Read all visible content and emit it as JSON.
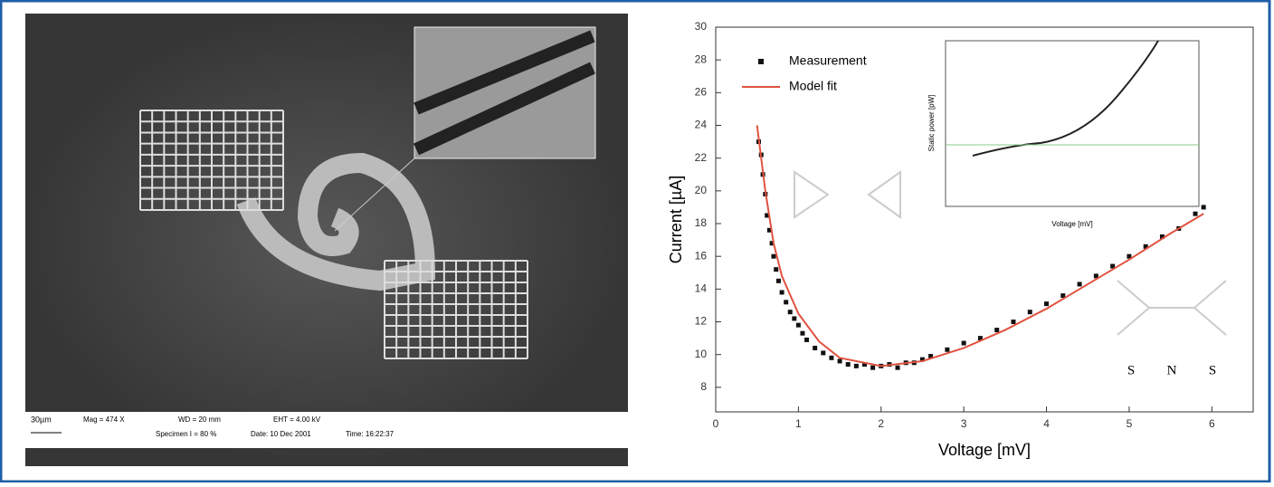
{
  "sem_image": {
    "scale_bar": "30µm",
    "info": [
      "Mag = 474 X",
      "WD = 20 mm",
      "EHT = 4.00 kV",
      "Specimen I = 80 %",
      "Date: 10 Dec 2001",
      "Time: 16:22:37"
    ]
  },
  "chart_data": {
    "type": "scatter",
    "xlabel": "Voltage [mV]",
    "ylabel": "Current [µA]",
    "xlim": [
      0,
      6.5
    ],
    "ylim": [
      6.5,
      30
    ],
    "xticks": [
      0,
      1,
      2,
      3,
      4,
      5,
      6
    ],
    "yticks": [
      8,
      10,
      12,
      14,
      16,
      18,
      20,
      22,
      24,
      26,
      28,
      30
    ],
    "legend": "upper left",
    "series": [
      {
        "name": "Measurement",
        "color": "#111111",
        "mode": "markers",
        "x": [
          0.52,
          0.55,
          0.57,
          0.6,
          0.62,
          0.65,
          0.68,
          0.7,
          0.73,
          0.76,
          0.8,
          0.85,
          0.9,
          0.95,
          1.0,
          1.05,
          1.1,
          1.2,
          1.3,
          1.4,
          1.5,
          1.6,
          1.7,
          1.8,
          1.9,
          2.0,
          2.1,
          2.2,
          2.3,
          2.4,
          2.5,
          2.6,
          2.8,
          3.0,
          3.2,
          3.4,
          3.6,
          3.8,
          4.0,
          4.2,
          4.4,
          4.6,
          4.8,
          5.0,
          5.2,
          5.4,
          5.6,
          5.8,
          5.9
        ],
        "values": [
          23.0,
          22.2,
          21.0,
          19.8,
          18.5,
          17.6,
          16.8,
          16.0,
          15.2,
          14.5,
          13.8,
          13.2,
          12.6,
          12.2,
          11.8,
          11.3,
          10.9,
          10.4,
          10.1,
          9.8,
          9.6,
          9.4,
          9.3,
          9.4,
          9.2,
          9.3,
          9.4,
          9.2,
          9.5,
          9.5,
          9.7,
          9.9,
          10.3,
          10.7,
          11.0,
          11.5,
          12.0,
          12.6,
          13.1,
          13.6,
          14.3,
          14.8,
          15.4,
          16.0,
          16.6,
          17.2,
          17.7,
          18.6,
          19.0
        ]
      },
      {
        "name": "Model fit",
        "color": "#e0523f",
        "mode": "line",
        "x": [
          0.5,
          0.6,
          0.7,
          0.8,
          1.0,
          1.25,
          1.5,
          2.0,
          2.5,
          3.0,
          3.5,
          4.0,
          4.5,
          5.0,
          5.5,
          5.9
        ],
        "values": [
          24.0,
          20.0,
          16.8,
          14.8,
          12.5,
          10.8,
          9.8,
          9.3,
          9.6,
          10.4,
          11.5,
          12.8,
          14.3,
          15.8,
          17.4,
          18.6
        ]
      }
    ]
  },
  "inset": {
    "xlabel": "Voltage [mV]",
    "ylabel": "Static power [pW]"
  },
  "diagram": {
    "labels": [
      "S",
      "N",
      "S"
    ]
  }
}
